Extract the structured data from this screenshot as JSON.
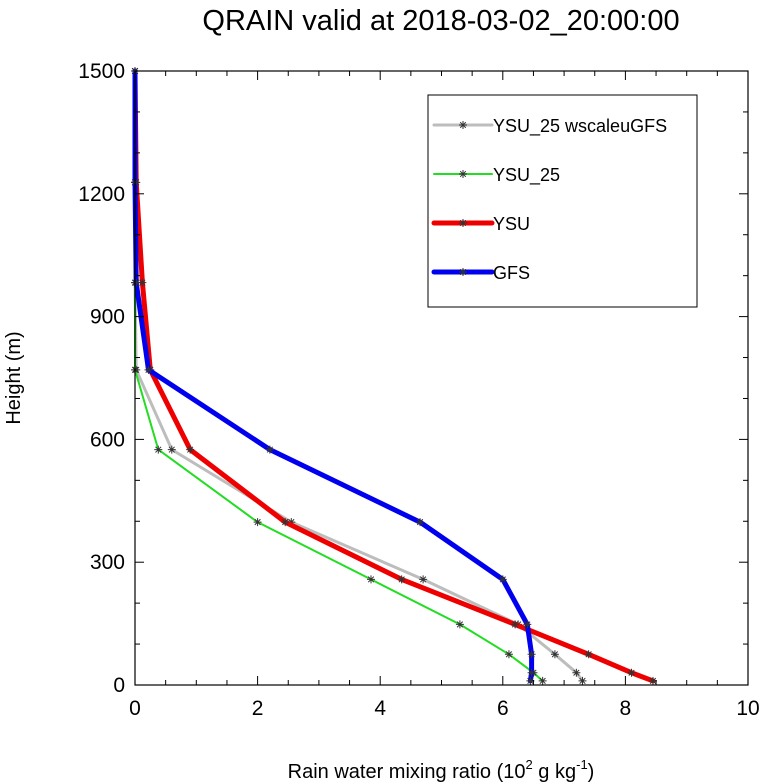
{
  "chart_data": {
    "type": "line",
    "title": "QRAIN valid at 2018-03-02_20:00:00",
    "xlabel": {
      "prefix": "Rain water mixing ratio (10",
      "exp1": "2",
      "mid": " g kg",
      "exp2": "-1",
      "suffix": ")"
    },
    "ylabel": "Height (m)",
    "xlim": [
      0,
      10
    ],
    "ylim": [
      0,
      1500
    ],
    "xticks": [
      0,
      2,
      4,
      6,
      8,
      10
    ],
    "yticks": [
      0,
      300,
      600,
      900,
      1200,
      1500
    ],
    "legend_position": "top-right",
    "series": [
      {
        "name": "YSU_25 wscaleuGFS",
        "color": "#bdbdbd",
        "width": 3,
        "points": [
          [
            7.3,
            10
          ],
          [
            7.2,
            30
          ],
          [
            6.85,
            75
          ],
          [
            6.25,
            148
          ],
          [
            4.7,
            258
          ],
          [
            2.55,
            398
          ],
          [
            0.6,
            575
          ],
          [
            0.02,
            770
          ],
          [
            0.0,
            983
          ],
          [
            0.0,
            1228
          ],
          [
            0.0,
            1500
          ]
        ]
      },
      {
        "name": "YSU_25",
        "color": "#22dd22",
        "width": 2,
        "points": [
          [
            6.65,
            10
          ],
          [
            6.5,
            30
          ],
          [
            6.1,
            75
          ],
          [
            5.3,
            148
          ],
          [
            3.85,
            258
          ],
          [
            2.0,
            398
          ],
          [
            0.38,
            575
          ],
          [
            0.0,
            770
          ],
          [
            0.0,
            983
          ],
          [
            0.0,
            1228
          ],
          [
            0.0,
            1500
          ]
        ]
      },
      {
        "name": "YSU",
        "color": "#ee0000",
        "width": 5,
        "points": [
          [
            8.45,
            10
          ],
          [
            8.1,
            30
          ],
          [
            7.4,
            75
          ],
          [
            6.2,
            148
          ],
          [
            4.35,
            258
          ],
          [
            2.45,
            398
          ],
          [
            0.9,
            575
          ],
          [
            0.25,
            770
          ],
          [
            0.12,
            983
          ],
          [
            0.02,
            1228
          ],
          [
            0.0,
            1500
          ]
        ]
      },
      {
        "name": "GFS",
        "color": "#0000ee",
        "width": 5,
        "points": [
          [
            6.45,
            10
          ],
          [
            6.47,
            30
          ],
          [
            6.47,
            75
          ],
          [
            6.4,
            148
          ],
          [
            6.0,
            258
          ],
          [
            4.65,
            398
          ],
          [
            2.2,
            575
          ],
          [
            0.22,
            770
          ],
          [
            0.02,
            983
          ],
          [
            0.0,
            1228
          ],
          [
            0.0,
            1500
          ]
        ]
      }
    ]
  }
}
